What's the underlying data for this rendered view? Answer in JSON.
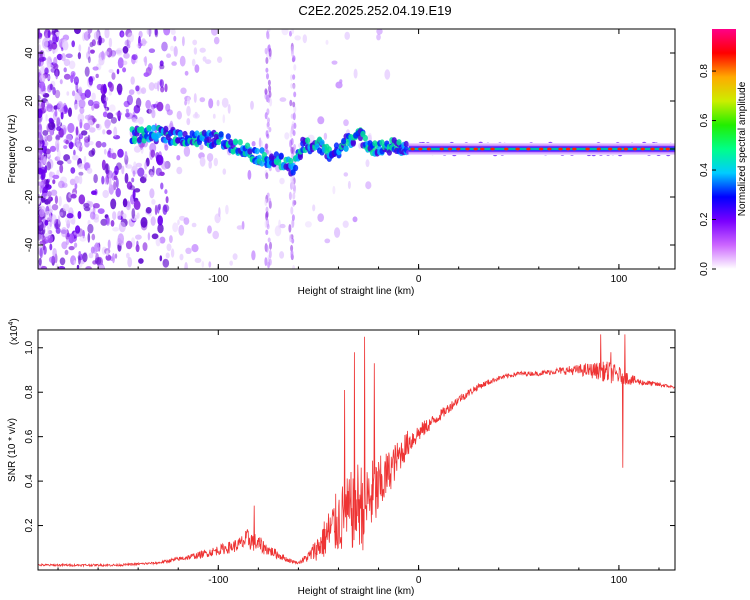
{
  "title": "C2E2.2025.252.04.19.E19",
  "chart_data": [
    {
      "type": "heatmap",
      "name": "spectrogram",
      "xlabel": "Height of straight line (km)",
      "ylabel": "Frequency (Hz)",
      "xlim": [
        -190,
        128
      ],
      "ylim": [
        -50,
        50
      ],
      "xticks": [
        -100,
        0,
        100
      ],
      "xtick_labels": [
        "-100",
        "0",
        "100"
      ],
      "yticks": [
        -40,
        -20,
        0,
        20,
        40
      ],
      "ytick_labels": [
        "-40",
        "-20",
        "0",
        "20",
        "40"
      ],
      "ridge": {
        "x": [
          -140,
          -130,
          -120,
          -110,
          -100,
          -90,
          -80,
          -70,
          -62,
          -58,
          -50,
          -45,
          -40,
          -35,
          -30,
          -25,
          -20,
          -15,
          -10,
          -5,
          0,
          20,
          40,
          60,
          80,
          100,
          128
        ],
        "freq": [
          6,
          6,
          5,
          4,
          4,
          1,
          -3,
          -5,
          -8,
          1,
          2,
          -2,
          -1,
          4,
          6,
          2,
          0,
          1,
          1,
          0,
          0,
          0,
          0,
          0,
          0,
          0,
          0
        ]
      },
      "colorbar": {
        "label": "Normalized spectral amplitude",
        "range": [
          0,
          0.97
        ],
        "ticks": [
          0.0,
          0.2,
          0.4,
          0.6,
          0.8
        ],
        "tick_labels": [
          "0.0",
          "0.2",
          "0.4",
          "0.6",
          "0.8"
        ],
        "colors": [
          "#ffffff",
          "#cc66ff",
          "#7a00ff",
          "#0000ff",
          "#00ccff",
          "#00ff88",
          "#22ee00",
          "#ccee00",
          "#ffaa00",
          "#ff0000",
          "#ff0088"
        ]
      },
      "series_color": "#6a00ee"
    },
    {
      "type": "line",
      "name": "snr",
      "xlabel": "Height of straight line (km)",
      "ylabel": "SNR (10 * v/v)",
      "scale_label": "(x10",
      "scale_exponent": "4",
      "scale_suffix": ")",
      "xlim": [
        -190,
        128
      ],
      "ylim": [
        0,
        1.08
      ],
      "xticks": [
        -100,
        0,
        100
      ],
      "xtick_labels": [
        "-100",
        "0",
        "100"
      ],
      "yticks": [
        0.2,
        0.4,
        0.6,
        0.8,
        1.0
      ],
      "ytick_labels": [
        "0.2",
        "0.4",
        "0.6",
        "0.8",
        "1.0"
      ],
      "color": "#ee3333",
      "envelope": {
        "x": [
          -190,
          -150,
          -130,
          -110,
          -90,
          -85,
          -80,
          -75,
          -70,
          -65,
          -60,
          -55,
          -50,
          -45,
          -40,
          -35,
          -30,
          -27,
          -25,
          -20,
          -15,
          -10,
          -5,
          0,
          10,
          20,
          30,
          40,
          50,
          60,
          70,
          80,
          90,
          95,
          100,
          110,
          120,
          128
        ],
        "base": [
          0.02,
          0.02,
          0.03,
          0.06,
          0.1,
          0.12,
          0.1,
          0.08,
          0.06,
          0.04,
          0.03,
          0.05,
          0.08,
          0.12,
          0.16,
          0.18,
          0.22,
          0.2,
          0.25,
          0.3,
          0.4,
          0.48,
          0.55,
          0.6,
          0.68,
          0.76,
          0.82,
          0.86,
          0.88,
          0.88,
          0.89,
          0.89,
          0.88,
          0.87,
          0.86,
          0.84,
          0.83,
          0.82
        ],
        "spread": [
          0.01,
          0.01,
          0.01,
          0.03,
          0.06,
          0.1,
          0.08,
          0.05,
          0.04,
          0.02,
          0.01,
          0.05,
          0.12,
          0.22,
          0.3,
          0.35,
          0.4,
          0.4,
          0.35,
          0.3,
          0.2,
          0.15,
          0.12,
          0.08,
          0.05,
          0.04,
          0.03,
          0.02,
          0.02,
          0.02,
          0.03,
          0.05,
          0.08,
          0.1,
          0.08,
          0.03,
          0.02,
          0.01
        ]
      },
      "peaks": [
        {
          "x": -82,
          "y": 0.29
        },
        {
          "x": -37,
          "y": 0.81
        },
        {
          "x": -32,
          "y": 0.98
        },
        {
          "x": -27,
          "y": 1.05
        },
        {
          "x": -22,
          "y": 0.93
        },
        {
          "x": 91,
          "y": 1.06
        },
        {
          "x": 96,
          "y": 0.98
        },
        {
          "x": 103,
          "y": 1.06
        },
        {
          "x": 102,
          "y": 0.46
        }
      ]
    }
  ]
}
